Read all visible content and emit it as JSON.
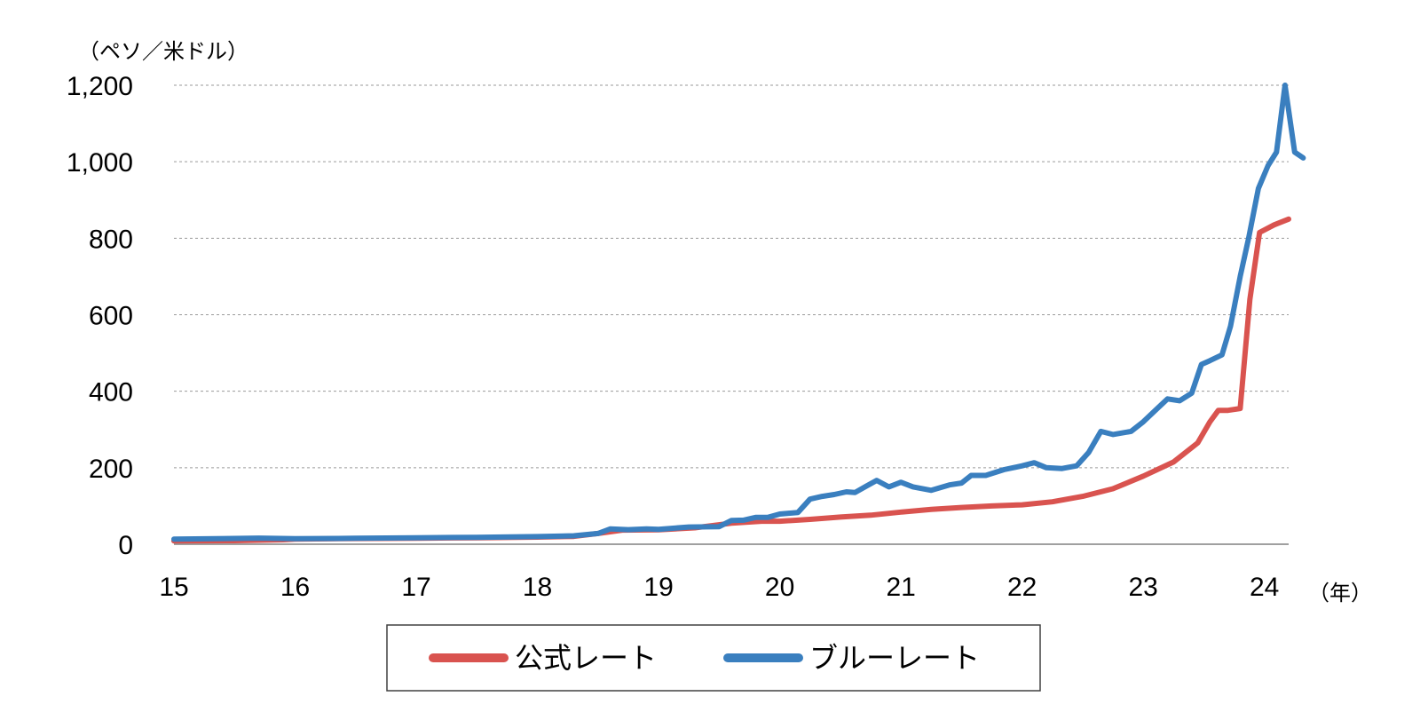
{
  "chart_data": {
    "type": "line",
    "y_unit_label": "（ペソ／米ドル）",
    "x_unit_label": "（年）",
    "ylim": [
      0,
      1200
    ],
    "yticks": [
      0,
      200,
      400,
      600,
      800,
      1000,
      1200
    ],
    "ytick_labels": [
      "0",
      "200",
      "400",
      "600",
      "800",
      "1,000",
      "1,200"
    ],
    "xlim": [
      2015,
      2024.2
    ],
    "xticks": [
      2015,
      2016,
      2017,
      2018,
      2019,
      2020,
      2021,
      2022,
      2023,
      2024
    ],
    "xtick_labels": [
      "15",
      "16",
      "17",
      "18",
      "19",
      "20",
      "21",
      "22",
      "23",
      "24"
    ],
    "grid": true,
    "legend_position": "bottom",
    "series": [
      {
        "name": "公式レート",
        "color": "#d9534f",
        "points": [
          [
            2015.0,
            8.6
          ],
          [
            2015.5,
            9.2
          ],
          [
            2015.9,
            11.5
          ],
          [
            2016.0,
            13.5
          ],
          [
            2016.5,
            14.8
          ],
          [
            2017.0,
            15.8
          ],
          [
            2017.5,
            17.0
          ],
          [
            2018.0,
            18.6
          ],
          [
            2018.3,
            20.5
          ],
          [
            2018.5,
            28.0
          ],
          [
            2018.7,
            37.0
          ],
          [
            2019.0,
            37.8
          ],
          [
            2019.3,
            43.0
          ],
          [
            2019.6,
            55.0
          ],
          [
            2019.85,
            60.0
          ],
          [
            2020.0,
            60.0
          ],
          [
            2020.25,
            65.0
          ],
          [
            2020.5,
            71.0
          ],
          [
            2020.75,
            76.0
          ],
          [
            2021.0,
            84.0
          ],
          [
            2021.25,
            91.0
          ],
          [
            2021.5,
            96.0
          ],
          [
            2021.75,
            100.0
          ],
          [
            2022.0,
            103.0
          ],
          [
            2022.25,
            111.0
          ],
          [
            2022.5,
            125.0
          ],
          [
            2022.75,
            145.0
          ],
          [
            2023.0,
            178.0
          ],
          [
            2023.25,
            215.0
          ],
          [
            2023.45,
            265.0
          ],
          [
            2023.55,
            320.0
          ],
          [
            2023.62,
            350.0
          ],
          [
            2023.7,
            350.0
          ],
          [
            2023.8,
            355.0
          ],
          [
            2023.88,
            640.0
          ],
          [
            2023.96,
            815.0
          ],
          [
            2024.08,
            835.0
          ],
          [
            2024.2,
            850.0
          ]
        ]
      },
      {
        "name": "ブルーレート",
        "color": "#3a7fbf",
        "points": [
          [
            2015.0,
            13.5
          ],
          [
            2015.5,
            15.0
          ],
          [
            2015.7,
            16.0
          ],
          [
            2016.0,
            14.5
          ],
          [
            2016.5,
            15.5
          ],
          [
            2017.0,
            17.0
          ],
          [
            2017.5,
            18.0
          ],
          [
            2018.0,
            20.0
          ],
          [
            2018.3,
            22.0
          ],
          [
            2018.5,
            28.0
          ],
          [
            2018.6,
            40.0
          ],
          [
            2018.75,
            38.0
          ],
          [
            2018.9,
            40.0
          ],
          [
            2019.0,
            39.0
          ],
          [
            2019.25,
            45.0
          ],
          [
            2019.5,
            46.0
          ],
          [
            2019.6,
            62.0
          ],
          [
            2019.7,
            63.0
          ],
          [
            2019.8,
            70.0
          ],
          [
            2019.9,
            70.0
          ],
          [
            2020.0,
            79.0
          ],
          [
            2020.15,
            83.0
          ],
          [
            2020.25,
            118.0
          ],
          [
            2020.35,
            125.0
          ],
          [
            2020.45,
            130.0
          ],
          [
            2020.55,
            137.0
          ],
          [
            2020.62,
            135.0
          ],
          [
            2020.72,
            153.0
          ],
          [
            2020.8,
            167.0
          ],
          [
            2020.9,
            150.0
          ],
          [
            2021.0,
            162.0
          ],
          [
            2021.1,
            150.0
          ],
          [
            2021.25,
            141.0
          ],
          [
            2021.4,
            155.0
          ],
          [
            2021.5,
            160.0
          ],
          [
            2021.58,
            180.0
          ],
          [
            2021.7,
            180.0
          ],
          [
            2021.85,
            195.0
          ],
          [
            2022.0,
            205.0
          ],
          [
            2022.1,
            213.0
          ],
          [
            2022.2,
            200.0
          ],
          [
            2022.33,
            198.0
          ],
          [
            2022.45,
            205.0
          ],
          [
            2022.55,
            240.0
          ],
          [
            2022.65,
            295.0
          ],
          [
            2022.75,
            287.0
          ],
          [
            2022.9,
            295.0
          ],
          [
            2023.0,
            320.0
          ],
          [
            2023.1,
            350.0
          ],
          [
            2023.2,
            380.0
          ],
          [
            2023.3,
            375.0
          ],
          [
            2023.4,
            395.0
          ],
          [
            2023.48,
            470.0
          ],
          [
            2023.55,
            480.0
          ],
          [
            2023.65,
            495.0
          ],
          [
            2023.72,
            570.0
          ],
          [
            2023.8,
            700.0
          ],
          [
            2023.87,
            800.0
          ],
          [
            2023.95,
            930.0
          ],
          [
            2024.03,
            990.0
          ],
          [
            2024.1,
            1025.0
          ],
          [
            2024.17,
            1200.0
          ],
          [
            2024.25,
            1025.0
          ],
          [
            2024.32,
            1010.0
          ]
        ]
      }
    ]
  }
}
